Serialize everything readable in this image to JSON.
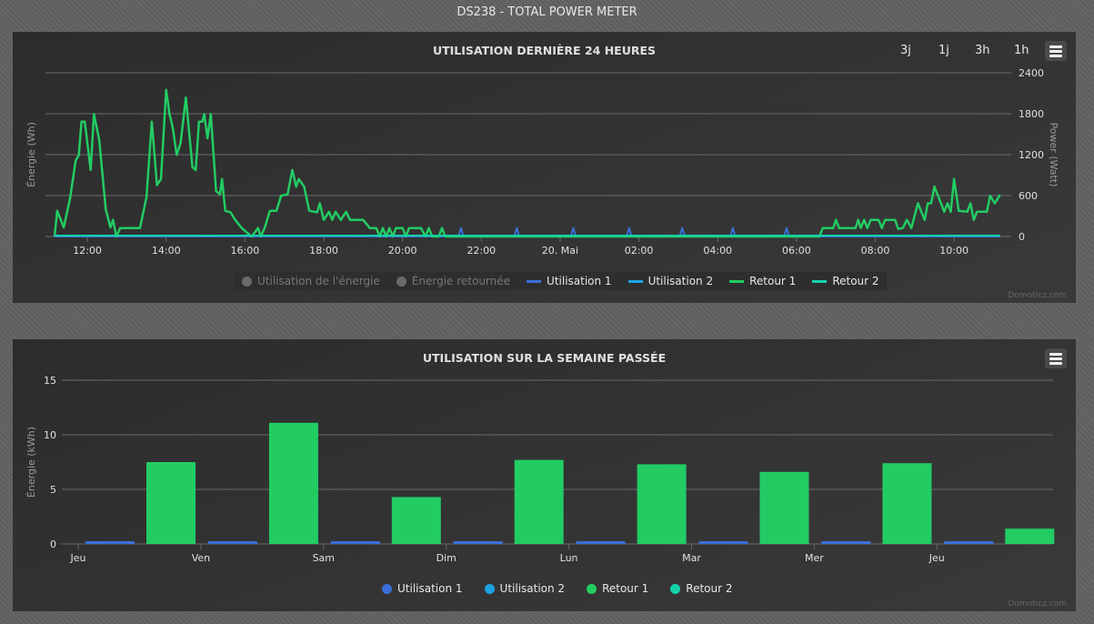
{
  "page_title": "DS238 - TOTAL POWER METER",
  "credit": "Domoticz.com",
  "colors": {
    "utilisation1": "#3a6fd8",
    "utilisation2": "#1ba1e2",
    "retour1": "#22cc63",
    "retour2": "#14d2a8",
    "grid": "#6a6a6a",
    "disabled": "#6a6a6a"
  },
  "chart_data": [
    {
      "type": "line",
      "title": "UTILISATION DERNIÈRE 24 HEURES",
      "ylabel_left": "Énergie (Wh)",
      "ylabel_right": "Power (Watt)",
      "yrange_right": [
        0,
        2400
      ],
      "yticks_right": [
        "2400",
        "1800",
        "1200",
        "600",
        "0"
      ],
      "xticks": [
        "12:00",
        "14:00",
        "16:00",
        "18:00",
        "20:00",
        "22:00",
        "20. Mai",
        "02:00",
        "04:00",
        "06:00",
        "08:00",
        "10:00"
      ],
      "xrange": [
        "19 11:10",
        "20 11:10"
      ],
      "grid": true,
      "legend_position": "bottom",
      "range_buttons": [
        "3j",
        "1j",
        "3h",
        "1h"
      ],
      "legend": [
        {
          "name": "Utilisation de l'énergie",
          "type": "dot",
          "enabled": false
        },
        {
          "name": "Énergie retournée",
          "type": "dot",
          "enabled": false
        },
        {
          "name": "Utilisation 1",
          "type": "line",
          "enabled": true
        },
        {
          "name": "Utilisation 2",
          "type": "line",
          "enabled": true
        },
        {
          "name": "Retour 1",
          "type": "line",
          "enabled": true
        },
        {
          "name": "Retour 2",
          "type": "line",
          "enabled": true
        }
      ],
      "series": [
        {
          "name": "Utilisation 2",
          "key": "utilisation2",
          "points": [
            [
              "19 11:10",
              0
            ],
            [
              "20 11:10",
              0
            ]
          ]
        },
        {
          "name": "Retour 2",
          "key": "retour2",
          "points": [
            [
              "19 11:10",
              0
            ],
            [
              "20 11:10",
              0
            ]
          ]
        },
        {
          "name": "Utilisation 1",
          "key": "utilisation1",
          "points": [
            [
              "19 11:10",
              0
            ],
            [
              "19 21:25",
              0
            ],
            [
              "19 21:29",
              124
            ],
            [
              "19 21:33",
              0
            ],
            [
              "19 22:50",
              0
            ],
            [
              "19 22:54",
              124
            ],
            [
              "19 22:58",
              0
            ],
            [
              "20 00:16",
              0
            ],
            [
              "20 00:20",
              124
            ],
            [
              "20 00:24",
              0
            ],
            [
              "20 01:41",
              0
            ],
            [
              "20 01:45",
              124
            ],
            [
              "20 01:49",
              0
            ],
            [
              "20 03:02",
              0
            ],
            [
              "20 03:06",
              124
            ],
            [
              "20 03:10",
              0
            ],
            [
              "20 04:19",
              0
            ],
            [
              "20 04:23",
              124
            ],
            [
              "20 04:27",
              0
            ],
            [
              "20 05:41",
              0
            ],
            [
              "20 05:45",
              124
            ],
            [
              "20 05:49",
              0
            ],
            [
              "20 11:10",
              0
            ]
          ]
        },
        {
          "name": "Retour 1",
          "key": "retour1",
          "points": [
            [
              "19 11:10",
              0
            ],
            [
              "19 11:14",
              376
            ],
            [
              "19 11:24",
              133
            ],
            [
              "19 11:34",
              576
            ],
            [
              "19 11:42",
              1108
            ],
            [
              "19 11:47",
              1196
            ],
            [
              "19 11:51",
              1683
            ],
            [
              "19 11:56",
              1683
            ],
            [
              "19 12:05",
              975
            ],
            [
              "19 12:10",
              1794
            ],
            [
              "19 12:18",
              1418
            ],
            [
              "19 12:28",
              399
            ],
            [
              "19 12:35",
              133
            ],
            [
              "19 12:39",
              244
            ],
            [
              "19 12:44",
              0
            ],
            [
              "19 12:50",
              124
            ],
            [
              "19 13:20",
              124
            ],
            [
              "19 13:30",
              576
            ],
            [
              "19 13:38",
              1683
            ],
            [
              "19 13:46",
              753
            ],
            [
              "19 13:52",
              842
            ],
            [
              "19 14:00",
              2149
            ],
            [
              "19 14:05",
              1794
            ],
            [
              "19 14:10",
              1595
            ],
            [
              "19 14:16",
              1196
            ],
            [
              "19 14:22",
              1373
            ],
            [
              "19 14:30",
              2038
            ],
            [
              "19 14:40",
              1019
            ],
            [
              "19 14:45",
              975
            ],
            [
              "19 14:50",
              1683
            ],
            [
              "19 14:55",
              1683
            ],
            [
              "19 14:58",
              1794
            ],
            [
              "19 15:03",
              1440
            ],
            [
              "19 15:08",
              1794
            ],
            [
              "19 15:16",
              665
            ],
            [
              "19 15:22",
              620
            ],
            [
              "19 15:25",
              842
            ],
            [
              "19 15:30",
              376
            ],
            [
              "19 15:38",
              354
            ],
            [
              "19 15:45",
              244
            ],
            [
              "19 15:55",
              124
            ],
            [
              "19 16:10",
              0
            ],
            [
              "19 16:20",
              124
            ],
            [
              "19 16:24",
              0
            ],
            [
              "19 16:30",
              124
            ],
            [
              "19 16:38",
              376
            ],
            [
              "19 16:48",
              376
            ],
            [
              "19 16:55",
              598
            ],
            [
              "19 17:05",
              620
            ],
            [
              "19 17:12",
              975
            ],
            [
              "19 17:18",
              731
            ],
            [
              "19 17:22",
              842
            ],
            [
              "19 17:30",
              731
            ],
            [
              "19 17:38",
              376
            ],
            [
              "19 17:50",
              354
            ],
            [
              "19 17:54",
              487
            ],
            [
              "19 18:00",
              244
            ],
            [
              "19 18:08",
              363
            ],
            [
              "19 18:13",
              244
            ],
            [
              "19 18:18",
              363
            ],
            [
              "19 18:26",
              244
            ],
            [
              "19 18:34",
              363
            ],
            [
              "19 18:40",
              244
            ],
            [
              "19 19:00",
              244
            ],
            [
              "19 19:10",
              124
            ],
            [
              "19 19:20",
              124
            ],
            [
              "19 19:25",
              0
            ],
            [
              "19 19:30",
              124
            ],
            [
              "19 19:35",
              0
            ],
            [
              "19 19:40",
              124
            ],
            [
              "19 19:45",
              0
            ],
            [
              "19 19:50",
              124
            ],
            [
              "19 20:00",
              124
            ],
            [
              "19 20:05",
              0
            ],
            [
              "19 20:10",
              124
            ],
            [
              "19 20:28",
              124
            ],
            [
              "19 20:35",
              0
            ],
            [
              "19 20:40",
              124
            ],
            [
              "19 20:45",
              0
            ],
            [
              "19 20:55",
              0
            ],
            [
              "19 21:00",
              124
            ],
            [
              "19 21:05",
              0
            ],
            [
              "20 06:35",
              0
            ],
            [
              "20 06:40",
              124
            ],
            [
              "20 06:56",
              124
            ],
            [
              "20 07:00",
              244
            ],
            [
              "20 07:05",
              124
            ],
            [
              "20 07:30",
              124
            ],
            [
              "20 07:34",
              244
            ],
            [
              "20 07:38",
              124
            ],
            [
              "20 07:43",
              244
            ],
            [
              "20 07:48",
              124
            ],
            [
              "20 07:53",
              244
            ],
            [
              "20 08:05",
              244
            ],
            [
              "20 08:10",
              124
            ],
            [
              "20 08:15",
              244
            ],
            [
              "20 08:30",
              244
            ],
            [
              "20 08:35",
              111
            ],
            [
              "20 08:42",
              124
            ],
            [
              "20 08:48",
              244
            ],
            [
              "20 08:55",
              124
            ],
            [
              "20 09:05",
              487
            ],
            [
              "20 09:15",
              244
            ],
            [
              "20 09:20",
              487
            ],
            [
              "20 09:25",
              487
            ],
            [
              "20 09:30",
              731
            ],
            [
              "20 09:40",
              487
            ],
            [
              "20 09:45",
              363
            ],
            [
              "20 09:50",
              487
            ],
            [
              "20 09:55",
              363
            ],
            [
              "20 10:00",
              842
            ],
            [
              "20 10:07",
              376
            ],
            [
              "20 10:20",
              363
            ],
            [
              "20 10:25",
              487
            ],
            [
              "20 10:30",
              244
            ],
            [
              "20 10:35",
              363
            ],
            [
              "20 10:50",
              363
            ],
            [
              "20 10:55",
              598
            ],
            [
              "20 11:02",
              487
            ],
            [
              "20 11:10",
              611
            ]
          ]
        }
      ]
    },
    {
      "type": "bar",
      "title": "UTILISATION SUR LA SEMAINE PASSÉE",
      "ylabel": "Énergie (kWh)",
      "ylim": [
        0,
        15
      ],
      "yticks": [
        "15",
        "10",
        "5",
        "0"
      ],
      "grid": true,
      "legend_position": "bottom",
      "categories": [
        "Jeu",
        "Ven",
        "Sam",
        "Dim",
        "Lun",
        "Mar",
        "Mer",
        "Jeu"
      ],
      "series": [
        {
          "name": "Utilisation 1",
          "key": "utilisation1",
          "values": [
            0.25,
            0.25,
            0.25,
            0.25,
            0.25,
            0.25,
            0.25,
            0.25
          ]
        },
        {
          "name": "Retour 1",
          "key": "retour1",
          "values": [
            7.5,
            11.1,
            4.3,
            7.7,
            7.3,
            6.6,
            7.4,
            1.4
          ]
        }
      ],
      "legend": [
        {
          "name": "Utilisation 1",
          "key": "utilisation1"
        },
        {
          "name": "Utilisation 2",
          "key": "utilisation2"
        },
        {
          "name": "Retour 1",
          "key": "retour1"
        },
        {
          "name": "Retour 2",
          "key": "retour2"
        }
      ]
    }
  ]
}
